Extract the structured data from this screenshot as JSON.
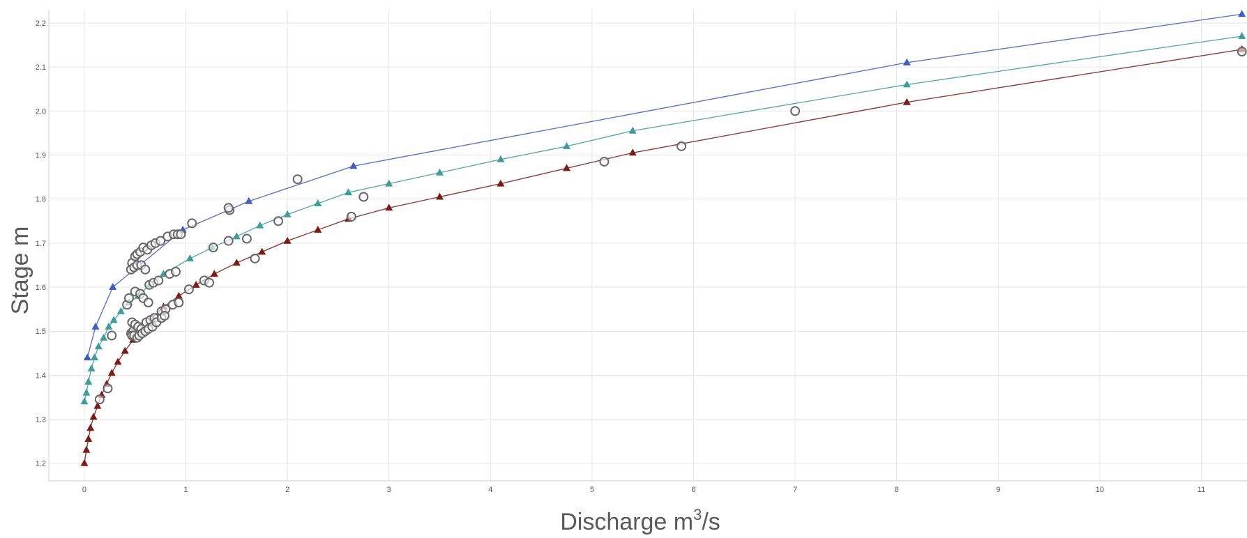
{
  "chart_data": {
    "type": "scatter",
    "xlabel": "Discharge m",
    "xlabel_sup": "3",
    "xlabel_suffix": "/s",
    "ylabel": "Stage m",
    "xlim": [
      -0.35,
      11.45
    ],
    "ylim": [
      1.16,
      2.23
    ],
    "x_ticks": [
      "0",
      "1",
      "2",
      "3",
      "4",
      "5",
      "6",
      "7",
      "8",
      "9",
      "10",
      "11"
    ],
    "y_ticks": [
      "1.2",
      "1.3",
      "1.4",
      "1.5",
      "1.6",
      "1.7",
      "1.8",
      "1.9",
      "2.0",
      "2.1",
      "2.2"
    ],
    "grid": true,
    "legend": "none",
    "colors": {
      "upper": "#3F5BC4",
      "middle": "#3E9C9C",
      "lower": "#7E1A14",
      "observed": "#666666"
    },
    "series": [
      {
        "id": "upper",
        "marker": "triangle",
        "x": [
          0.03,
          0.11,
          0.28,
          0.97,
          1.62,
          2.65,
          8.1,
          11.4
        ],
        "y": [
          1.44,
          1.51,
          1.6,
          1.73,
          1.795,
          1.875,
          2.11,
          2.22
        ]
      },
      {
        "id": "middle",
        "marker": "triangle",
        "x": [
          0.0,
          0.02,
          0.04,
          0.07,
          0.1,
          0.14,
          0.19,
          0.24,
          0.29,
          0.36,
          0.44,
          0.53,
          0.64,
          0.78,
          1.04,
          1.26,
          1.5,
          1.73,
          2.0,
          2.3,
          2.6,
          3.0,
          3.5,
          4.1,
          4.75,
          5.4,
          8.1,
          11.4
        ],
        "y": [
          1.34,
          1.36,
          1.385,
          1.415,
          1.44,
          1.465,
          1.485,
          1.51,
          1.525,
          1.545,
          1.565,
          1.58,
          1.605,
          1.63,
          1.665,
          1.69,
          1.715,
          1.74,
          1.765,
          1.79,
          1.815,
          1.835,
          1.86,
          1.89,
          1.92,
          1.955,
          2.06,
          2.17
        ]
      },
      {
        "id": "lower",
        "marker": "triangle",
        "x": [
          0.0,
          0.02,
          0.04,
          0.06,
          0.09,
          0.13,
          0.17,
          0.22,
          0.27,
          0.33,
          0.4,
          0.48,
          0.57,
          0.67,
          0.78,
          0.93,
          1.1,
          1.28,
          1.5,
          1.75,
          2.0,
          2.3,
          2.6,
          3.0,
          3.5,
          4.1,
          4.75,
          5.4,
          8.1,
          11.4
        ],
        "y": [
          1.2,
          1.23,
          1.255,
          1.28,
          1.305,
          1.33,
          1.355,
          1.38,
          1.405,
          1.43,
          1.455,
          1.48,
          1.505,
          1.53,
          1.555,
          1.58,
          1.605,
          1.63,
          1.655,
          1.68,
          1.705,
          1.73,
          1.755,
          1.78,
          1.805,
          1.835,
          1.87,
          1.905,
          2.02,
          2.14
        ]
      },
      {
        "id": "observed",
        "marker": "circle",
        "x": [
          0.15,
          0.23,
          0.27,
          0.42,
          0.44,
          0.46,
          0.48,
          0.47,
          0.5,
          0.52,
          0.55,
          0.58,
          0.62,
          0.66,
          0.7,
          0.75,
          0.82,
          0.88,
          0.92,
          0.46,
          0.49,
          0.52,
          0.56,
          0.6,
          0.64,
          0.68,
          0.73,
          0.5,
          0.55,
          0.58,
          0.63,
          0.47,
          0.5,
          0.53,
          0.56,
          0.61,
          0.65,
          0.69,
          0.76,
          0.8,
          0.87,
          0.93,
          0.47,
          0.49,
          0.52,
          0.54,
          0.57,
          0.6,
          0.63,
          0.67,
          0.71,
          0.76,
          0.79,
          0.84,
          0.9,
          0.95,
          1.03,
          1.06,
          1.18,
          1.23,
          1.27,
          1.42,
          1.43,
          1.42,
          1.6,
          1.68,
          1.91,
          2.1,
          2.63,
          2.75,
          5.12,
          5.88,
          7.0,
          11.4
        ],
        "y": [
          1.345,
          1.37,
          1.49,
          1.56,
          1.575,
          1.495,
          1.5,
          1.655,
          1.67,
          1.675,
          1.68,
          1.69,
          1.685,
          1.695,
          1.7,
          1.705,
          1.715,
          1.72,
          1.72,
          1.64,
          1.645,
          1.65,
          1.65,
          1.64,
          1.605,
          1.61,
          1.615,
          1.59,
          1.585,
          1.575,
          1.565,
          1.52,
          1.515,
          1.51,
          1.505,
          1.52,
          1.525,
          1.53,
          1.545,
          1.55,
          1.56,
          1.565,
          1.49,
          1.49,
          1.485,
          1.49,
          1.495,
          1.5,
          1.505,
          1.51,
          1.52,
          1.53,
          1.535,
          1.63,
          1.635,
          1.72,
          1.595,
          1.745,
          1.615,
          1.61,
          1.69,
          1.705,
          1.775,
          1.78,
          1.71,
          1.665,
          1.75,
          1.845,
          1.76,
          1.805,
          1.885,
          1.92,
          2.0,
          2.135
        ]
      }
    ]
  }
}
